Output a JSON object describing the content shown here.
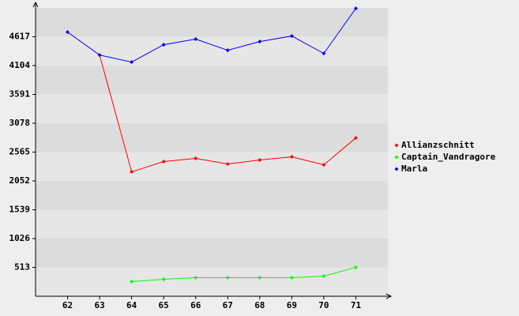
{
  "chart_data": {
    "type": "line",
    "categories": [
      "62",
      "63",
      "64",
      "65",
      "66",
      "67",
      "68",
      "69",
      "70",
      "71"
    ],
    "series": [
      {
        "name": "Allianzschnitt",
        "color": "#ff0000",
        "values": [
          null,
          4292,
          2213,
          2396,
          2452,
          2353,
          2424,
          2480,
          2339,
          2817
        ]
      },
      {
        "name": "Captain_Vandragore",
        "color": "#00ff00",
        "values": [
          null,
          null,
          260,
          302,
          330,
          330,
          330,
          330,
          358,
          513
        ]
      },
      {
        "name": "Marla",
        "color": "#0000ff",
        "values": [
          4700,
          4292,
          4166,
          4475,
          4574,
          4377,
          4531,
          4630,
          4320,
          5121
        ]
      }
    ],
    "ylim": [
      0,
      5130
    ],
    "yticks": [
      513,
      1026,
      1539,
      2052,
      2565,
      3078,
      3591,
      4104,
      4617
    ],
    "grid": true
  }
}
